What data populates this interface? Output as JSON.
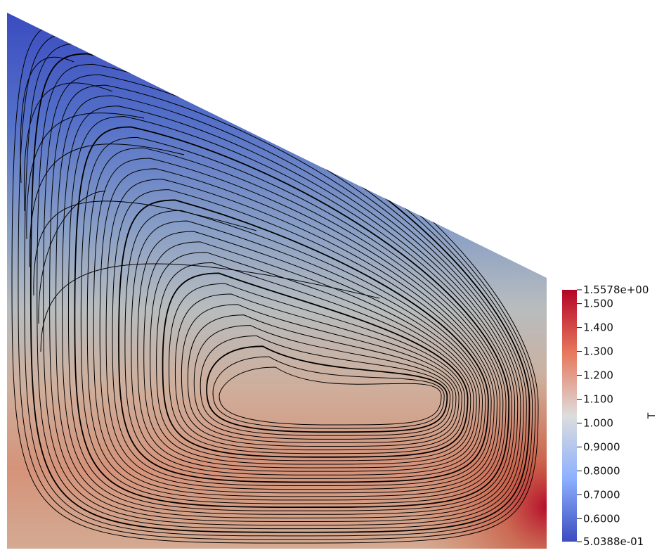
{
  "field_name": "T",
  "colorbar": {
    "colormap": "Cool to Warm",
    "range": [
      0.50388,
      1.5578
    ],
    "max_label": "1.5578e+00",
    "min_label": "5.0388e-01",
    "ticks": [
      {
        "value": 1.5,
        "label": "1.500"
      },
      {
        "value": 1.4,
        "label": "1.400"
      },
      {
        "value": 1.3,
        "label": "1.300"
      },
      {
        "value": 1.2,
        "label": "1.200"
      },
      {
        "value": 1.1,
        "label": "1.100"
      },
      {
        "value": 1.0,
        "label": "1.000"
      },
      {
        "value": 0.9,
        "label": "0.9000"
      },
      {
        "value": 0.8,
        "label": "0.8000"
      },
      {
        "value": 0.7,
        "label": "0.7000"
      },
      {
        "value": 0.6,
        "label": "0.6000"
      }
    ],
    "colors": {
      "low": "#3b4cc0",
      "mid": "#dddddd",
      "high": "#b40426"
    }
  },
  "streamlines": {
    "color": "#000000",
    "pattern": "single clockwise recirculation vortex"
  }
}
